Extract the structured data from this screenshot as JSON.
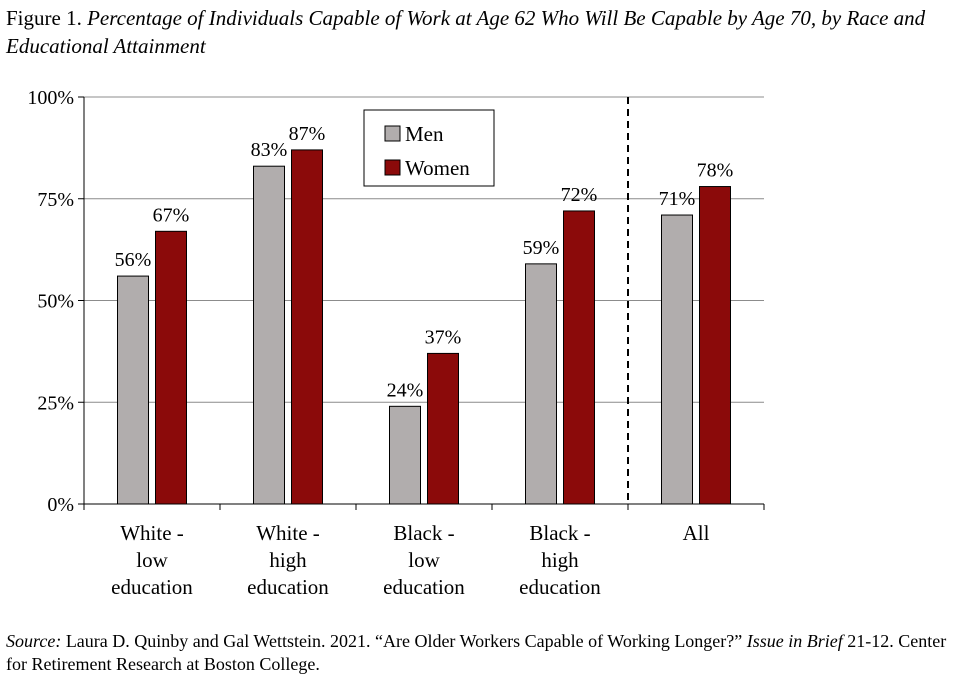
{
  "title": {
    "figure_label": "Figure 1.",
    "text": "Percentage of Individuals Capable of Work at Age 62 Who Will Be Capable by Age 70, by Race and Educational Attainment"
  },
  "source": {
    "label": "Source:",
    "text_before": "Laura D. Quinby and Gal Wettstein. 2021. “Are Older Workers Capable of Working Longer?”",
    "italic_1": "Issue in Brief",
    "text_after": "21-12. Center for Retirement Research at Boston College."
  },
  "chart_data": {
    "type": "bar",
    "categories": [
      [
        "White -",
        "low",
        "education"
      ],
      [
        "White -",
        "high",
        "education"
      ],
      [
        "Black -",
        "low",
        "education"
      ],
      [
        "Black -",
        "high",
        "education"
      ],
      [
        "All"
      ]
    ],
    "series": [
      {
        "name": "Men",
        "color": "#b1adad",
        "values": [
          56,
          83,
          24,
          59,
          71
        ],
        "labels": [
          "56%",
          "83%",
          "24%",
          "59%",
          "71%"
        ]
      },
      {
        "name": "Women",
        "color": "#8b0a0a",
        "values": [
          67,
          87,
          37,
          72,
          78
        ],
        "labels": [
          "67%",
          "87%",
          "37%",
          "72%",
          "78%"
        ]
      }
    ],
    "ylim": [
      0,
      100
    ],
    "yticks": [
      "0%",
      "25%",
      "50%",
      "75%",
      "100%"
    ],
    "grid": true,
    "legend_position": "top-center",
    "separator_before_category": "All"
  }
}
